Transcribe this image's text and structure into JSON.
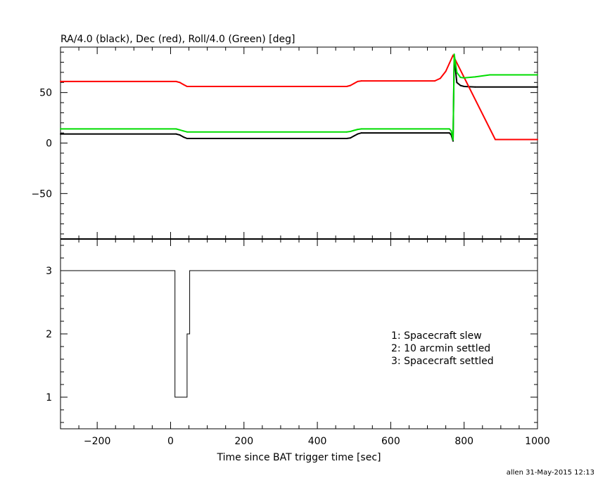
{
  "chart_data": [
    {
      "type": "line",
      "title": "RA/4.0 (black), Dec (red), Roll/4.0 (Green) [deg]",
      "xlim": [
        -300,
        1000
      ],
      "ylim": [
        -95,
        95
      ],
      "y_ticks": [
        -50,
        0,
        50
      ],
      "y_tick_labels": [
        "−50",
        "0",
        "50"
      ],
      "grid": false,
      "series": [
        {
          "name": "RA/4.0",
          "color": "#000000",
          "x": [
            -300,
            15,
            25,
            35,
            45,
            335,
            480,
            490,
            500,
            510,
            520,
            760,
            765,
            770,
            773,
            780,
            790,
            800,
            830,
            1000
          ],
          "y": [
            9,
            9,
            8,
            6,
            4.5,
            4.5,
            4.5,
            5,
            7,
            9,
            10,
            10,
            8,
            2,
            86,
            60,
            57,
            56,
            55.5,
            55.5
          ]
        },
        {
          "name": "Dec",
          "color": "#ff0000",
          "x": [
            -300,
            15,
            25,
            35,
            45,
            480,
            490,
            500,
            510,
            520,
            720,
            735,
            750,
            760,
            770,
            775,
            885,
            895,
            1000
          ],
          "y": [
            61,
            61,
            60,
            58,
            56,
            56,
            57,
            59,
            61,
            61.5,
            61.5,
            64,
            71,
            79,
            87,
            83,
            3.5,
            3.5,
            3.5
          ]
        },
        {
          "name": "Roll/4.0",
          "color": "#00dd00",
          "x": [
            -300,
            15,
            25,
            35,
            45,
            480,
            490,
            500,
            510,
            520,
            760,
            765,
            770,
            773,
            780,
            790,
            800,
            830,
            870,
            1000
          ],
          "y": [
            14,
            14,
            13,
            12,
            11,
            11,
            11.5,
            12.5,
            13.5,
            14,
            14,
            12,
            3,
            88,
            70,
            65,
            64.5,
            65.5,
            67.5,
            67.5
          ]
        }
      ]
    },
    {
      "type": "line",
      "xlabel": "Time since BAT trigger time [sec]",
      "xlim": [
        -300,
        1000
      ],
      "ylim": [
        0.5,
        3.5
      ],
      "x_ticks": [
        -200,
        0,
        200,
        400,
        600,
        800,
        1000
      ],
      "x_tick_labels": [
        "−200",
        "0",
        "200",
        "400",
        "600",
        "800",
        "1000"
      ],
      "y_ticks": [
        1,
        2,
        3
      ],
      "y_tick_labels": [
        "1",
        "2",
        "3"
      ],
      "grid": false,
      "annotations": [
        "1: Spacecraft slew",
        "2: 10 arcmin settled",
        "3: Spacecraft settled"
      ],
      "series": [
        {
          "color": "#000000",
          "step": true,
          "x": [
            -300,
            12,
            12,
            45,
            45,
            52,
            52,
            1000
          ],
          "y": [
            3,
            3,
            1,
            1,
            2,
            2,
            3,
            3
          ]
        }
      ]
    }
  ],
  "footer": "allen 31-May-2015 12:13"
}
